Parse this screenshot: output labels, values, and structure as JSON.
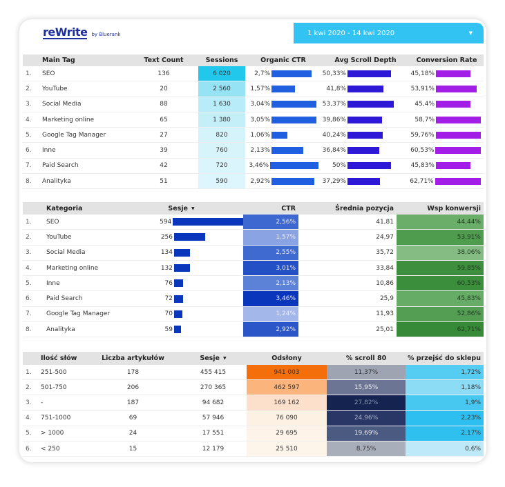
{
  "header": {
    "logo": "reWrite",
    "logo_by": "by Bluerank",
    "date_range": "1 kwi 2020 - 14 kwi 2020"
  },
  "colors": {
    "ctr_bar": "#1f5fe0",
    "scroll_bar": "#2e18d8",
    "conv_bar": "#a21ee6",
    "sesje_bar": "#0a36bc"
  },
  "table1": {
    "headers": [
      "",
      "Main Tag",
      "Text Count",
      "Sessions",
      "Organic CTR",
      "Avg Scroll Depth",
      "Conversion Rate"
    ],
    "rows": [
      {
        "i": "1.",
        "tag": "SEO",
        "count": "136",
        "sessions": "6 020",
        "s_color": "#22c8ec",
        "ctr": "2,7%",
        "ctr_v": 2.7,
        "scroll": "50,33%",
        "scroll_v": 50.33,
        "conv": "45,18%",
        "conv_v": 45.18
      },
      {
        "i": "2.",
        "tag": "YouTube",
        "count": "20",
        "sessions": "2 560",
        "s_color": "#96e3f5",
        "ctr": "1,57%",
        "ctr_v": 1.57,
        "scroll": "41,8%",
        "scroll_v": 41.8,
        "conv": "53,91%",
        "conv_v": 53.91
      },
      {
        "i": "3.",
        "tag": "Social Media",
        "count": "88",
        "sessions": "1 630",
        "s_color": "#b8ecf8",
        "ctr": "3,04%",
        "ctr_v": 3.04,
        "scroll": "53,37%",
        "scroll_v": 53.37,
        "conv": "45,4%",
        "conv_v": 45.4
      },
      {
        "i": "4.",
        "tag": "Marketing online",
        "count": "65",
        "sessions": "1 380",
        "s_color": "#c4eff9",
        "ctr": "3,05%",
        "ctr_v": 3.05,
        "scroll": "39,86%",
        "scroll_v": 39.86,
        "conv": "58,7%",
        "conv_v": 58.7
      },
      {
        "i": "5.",
        "tag": "Google Tag Manager",
        "count": "27",
        "sessions": "820",
        "s_color": "#d5f3fb",
        "ctr": "1,06%",
        "ctr_v": 1.06,
        "scroll": "40,24%",
        "scroll_v": 40.24,
        "conv": "59,76%",
        "conv_v": 59.76
      },
      {
        "i": "6.",
        "tag": "Inne",
        "count": "39",
        "sessions": "760",
        "s_color": "#d8f4fb",
        "ctr": "2,13%",
        "ctr_v": 2.13,
        "scroll": "36,84%",
        "scroll_v": 36.84,
        "conv": "60,53%",
        "conv_v": 60.53
      },
      {
        "i": "7.",
        "tag": "Paid Search",
        "count": "42",
        "sessions": "720",
        "s_color": "#daf5fb",
        "ctr": "3,46%",
        "ctr_v": 3.46,
        "scroll": "50%",
        "scroll_v": 50,
        "conv": "45,83%",
        "conv_v": 45.83
      },
      {
        "i": "8.",
        "tag": "Analityka",
        "count": "51",
        "sessions": "590",
        "s_color": "#ddf5fc",
        "ctr": "2,92%",
        "ctr_v": 2.92,
        "scroll": "37,29%",
        "scroll_v": 37.29,
        "conv": "62,71%",
        "conv_v": 62.71
      }
    ]
  },
  "table2": {
    "headers": [
      "",
      "Kategoria",
      "Sesje",
      "CTR",
      "Średnia pozycja",
      "Wsp konwersji"
    ],
    "sort_icon": "▼",
    "rows": [
      {
        "i": "1.",
        "cat": "SEO",
        "sesje": "594",
        "sesje_v": 594,
        "ctr": "2,56%",
        "ctr_color": "#3d68d0",
        "pos": "41,81",
        "conv": "44,44%",
        "conv_color": "#6aae6a"
      },
      {
        "i": "2.",
        "cat": "YouTube",
        "sesje": "256",
        "sesje_v": 256,
        "ctr": "1,57%",
        "ctr_color": "#8aa3e3",
        "pos": "24,97",
        "conv": "53,91%",
        "conv_color": "#4f9c4f"
      },
      {
        "i": "3.",
        "cat": "Social Media",
        "sesje": "134",
        "sesje_v": 134,
        "ctr": "2,55%",
        "ctr_color": "#3f6ad0",
        "pos": "35,72",
        "conv": "38,06%",
        "conv_color": "#84bc84"
      },
      {
        "i": "4.",
        "cat": "Marketing online",
        "sesje": "132",
        "sesje_v": 132,
        "ctr": "3,01%",
        "ctr_color": "#2450c6",
        "pos": "33,84",
        "conv": "59,85%",
        "conv_color": "#3d8f3d"
      },
      {
        "i": "5.",
        "cat": "Inne",
        "sesje": "76",
        "sesje_v": 76,
        "ctr": "2,13%",
        "ctr_color": "#5c82d8",
        "pos": "10,86",
        "conv": "60,53%",
        "conv_color": "#3b8e3b"
      },
      {
        "i": "6.",
        "cat": "Paid Search",
        "sesje": "72",
        "sesje_v": 72,
        "ctr": "3,46%",
        "ctr_color": "#0a36bc",
        "pos": "25,9",
        "conv": "45,83%",
        "conv_color": "#66ab66"
      },
      {
        "i": "7.",
        "cat": "Google Tag Manager",
        "sesje": "70",
        "sesje_v": 70,
        "ctr": "1,24%",
        "ctr_color": "#a3b7ea",
        "pos": "11,93",
        "conv": "52,86%",
        "conv_color": "#539e53"
      },
      {
        "i": "8.",
        "cat": "Analityka",
        "sesje": "59",
        "sesje_v": 59,
        "ctr": "2,92%",
        "ctr_color": "#2a56c8",
        "pos": "25,01",
        "conv": "62,71%",
        "conv_color": "#378a37"
      }
    ]
  },
  "table3": {
    "headers": [
      "",
      "Ilość słów",
      "Liczba artykułów",
      "Sesje",
      "Odsłony",
      "% scroll 80",
      "% przejść do sklepu"
    ],
    "sort_icon": "▼",
    "rows": [
      {
        "i": "1.",
        "words": "251-500",
        "articles": "178",
        "sesje": "455 415",
        "views": "941 003",
        "v_color": "#f46f0c",
        "scroll": "11,37%",
        "sc_color": "#9ea4b2",
        "sc_text": "#333",
        "shop": "1,72%",
        "sh_color": "#55cdf2"
      },
      {
        "i": "2.",
        "words": "501-750",
        "articles": "206",
        "sesje": "270 365",
        "views": "462 597",
        "v_color": "#fbb47c",
        "scroll": "15,95%",
        "sc_color": "#6c7694",
        "sc_text": "#eee",
        "shop": "1,18%",
        "sh_color": "#8cdcf6"
      },
      {
        "i": "3.",
        "words": "-",
        "articles": "187",
        "sesje": "94 682",
        "views": "169 162",
        "v_color": "#fde0cc",
        "scroll": "27,82%",
        "sc_color": "#14234f",
        "sc_text": "#8894b0",
        "shop": "1,9%",
        "sh_color": "#47c8f0"
      },
      {
        "i": "4.",
        "words": "751-1000",
        "articles": "69",
        "sesje": "57 946",
        "views": "76 090",
        "v_color": "#fdf1e3",
        "scroll": "24,96%",
        "sc_color": "#283765",
        "sc_text": "#aab2c8",
        "shop": "2,23%",
        "sh_color": "#2cbfef"
      },
      {
        "i": "5.",
        "words": "> 1000",
        "articles": "24",
        "sesje": "17 551",
        "views": "29 695",
        "v_color": "#fdf3e8",
        "scroll": "19,69%",
        "sc_color": "#4b5a80",
        "sc_text": "#eee",
        "shop": "2,17%",
        "sh_color": "#30c0ef"
      },
      {
        "i": "6.",
        "words": "< 250",
        "articles": "15",
        "sesje": "12 179",
        "views": "25 510",
        "v_color": "#fdf4ea",
        "scroll": "8,75%",
        "sc_color": "#a9aebb",
        "sc_text": "#333",
        "shop": "0,6%",
        "sh_color": "#bde9f9"
      }
    ]
  }
}
